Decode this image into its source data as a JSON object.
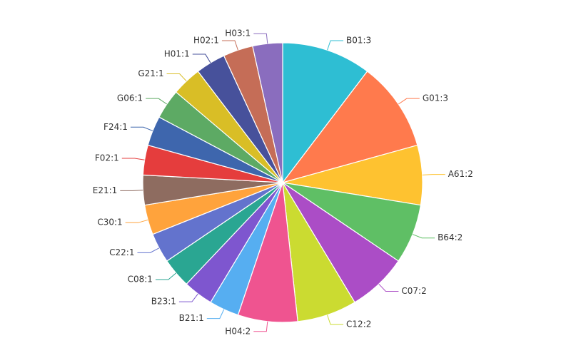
{
  "chart_data": {
    "type": "pie",
    "start_angle_deg": 0,
    "direction": "clockwise",
    "label_format": "name:value",
    "slices": [
      {
        "name": "B01",
        "value": 3,
        "label": "B01:3",
        "color": "#2ebed3"
      },
      {
        "name": "G01",
        "value": 3,
        "label": "G01:3",
        "color": "#ff7a4d"
      },
      {
        "name": "A61",
        "value": 2,
        "label": "A61:2",
        "color": "#fec230"
      },
      {
        "name": "B64",
        "value": 2,
        "label": "B64:2",
        "color": "#5fbf65"
      },
      {
        "name": "C07",
        "value": 2,
        "label": "C07:2",
        "color": "#ab4dc6"
      },
      {
        "name": "C12",
        "value": 2,
        "label": "C12:2",
        "color": "#cbdb31"
      },
      {
        "name": "H04",
        "value": 2,
        "label": "H04:2",
        "color": "#ef5490"
      },
      {
        "name": "B21",
        "value": 1,
        "label": "B21:1",
        "color": "#56aef1"
      },
      {
        "name": "B23",
        "value": 1,
        "label": "B23:1",
        "color": "#7e56cf"
      },
      {
        "name": "C08",
        "value": 1,
        "label": "C08:1",
        "color": "#2aa692"
      },
      {
        "name": "C22",
        "value": 1,
        "label": "C22:1",
        "color": "#6373cd"
      },
      {
        "name": "C30",
        "value": 1,
        "label": "C30:1",
        "color": "#ffa33c"
      },
      {
        "name": "E21",
        "value": 1,
        "label": "E21:1",
        "color": "#8e6c60"
      },
      {
        "name": "F02",
        "value": 1,
        "label": "F02:1",
        "color": "#e53d3d"
      },
      {
        "name": "F24",
        "value": 1,
        "label": "F24:1",
        "color": "#3e66ad"
      },
      {
        "name": "G06",
        "value": 1,
        "label": "G06:1",
        "color": "#5daa64"
      },
      {
        "name": "G21",
        "value": 1,
        "label": "G21:1",
        "color": "#d9be26"
      },
      {
        "name": "H01",
        "value": 1,
        "label": "H01:1",
        "color": "#47519b"
      },
      {
        "name": "H02",
        "value": 1,
        "label": "H02:1",
        "color": "#c56d57"
      },
      {
        "name": "H03",
        "value": 1,
        "label": "H03:1",
        "color": "#8a6dbe"
      }
    ]
  }
}
